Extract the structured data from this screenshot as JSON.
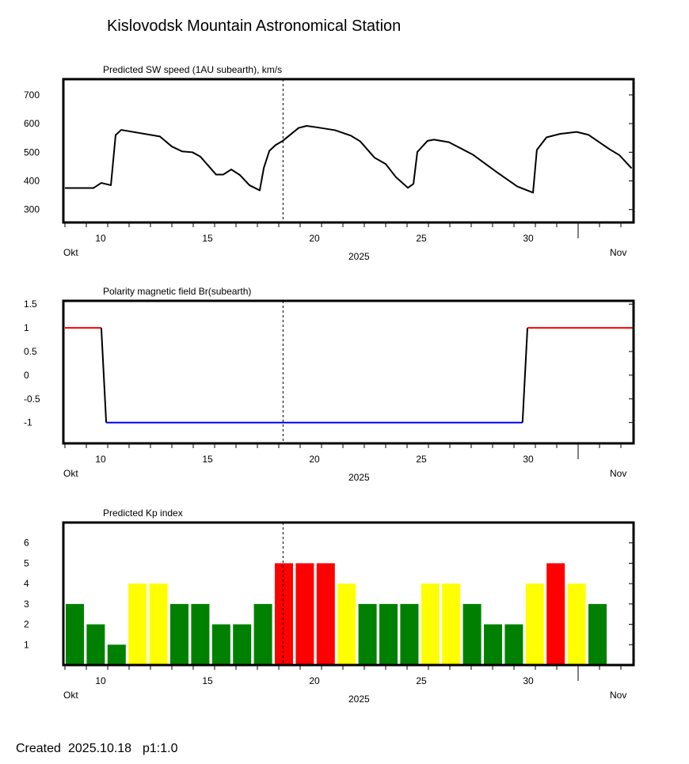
{
  "title": "Kislovodsk Mountain Astronomical Station",
  "footer": {
    "created_label": "Created",
    "date": "2025.10.18",
    "page": "p1:1.0"
  },
  "colors": {
    "line": "#000000",
    "positive": "#ff0000",
    "negative": "#0000ff",
    "kp_green": "#008000",
    "kp_yellow": "#ffff00",
    "kp_red": "#ff0000"
  },
  "chart_data": [
    {
      "type": "line",
      "title": "Predicted SW speed (1AU subearth), km/s",
      "xlabel": "2025",
      "x_month_left": "Okt",
      "x_month_right": "Nov",
      "xlim": [
        8,
        34.6
      ],
      "ylim": [
        255,
        755
      ],
      "xticks": [
        10,
        15,
        20,
        25,
        30
      ],
      "yticks": [
        300,
        400,
        500,
        600,
        700
      ],
      "current_day_marker": 18.2,
      "x": [
        8.0,
        9.33,
        9.7,
        10.15,
        10.37,
        10.63,
        12.44,
        13.0,
        13.48,
        13.96,
        14.33,
        15.07,
        15.4,
        15.78,
        16.19,
        16.63,
        17.11,
        17.3,
        17.56,
        17.85,
        18.19,
        18.93,
        19.3,
        19.78,
        20.63,
        21.37,
        21.81,
        22.48,
        23.0,
        23.48,
        24.04,
        24.3,
        24.48,
        24.96,
        25.26,
        25.96,
        27.07,
        28.19,
        29.15,
        29.89,
        30.07,
        30.52,
        31.15,
        31.93,
        32.48,
        33.48,
        33.93,
        34.5
      ],
      "y": [
        375,
        375,
        393,
        385,
        560,
        578,
        555,
        520,
        503,
        500,
        485,
        422,
        422,
        440,
        420,
        385,
        367,
        445,
        505,
        525,
        540,
        585,
        592,
        587,
        577,
        558,
        538,
        481,
        459,
        413,
        376,
        390,
        501,
        540,
        544,
        535,
        492,
        431,
        381,
        359,
        508,
        552,
        564,
        571,
        561,
        510,
        490,
        444
      ]
    },
    {
      "type": "line",
      "title": "Polarity magnetic field  Br(subearth)",
      "xlabel": "2025",
      "x_month_left": "Okt",
      "x_month_right": "Nov",
      "xlim": [
        8,
        34.6
      ],
      "ylim": [
        -1.44,
        1.57
      ],
      "xticks": [
        10,
        15,
        20,
        25,
        30
      ],
      "yticks": [
        1.5,
        1,
        0.5,
        0,
        -0.5,
        -1
      ],
      "ytick_labels": [
        "1.5",
        "1",
        "0.5",
        "0",
        "-0.5",
        "-1"
      ],
      "current_day_marker": 18.2,
      "x": [
        8.0,
        9.7,
        9.93,
        29.4,
        29.63,
        34.6
      ],
      "y": [
        1,
        1,
        -1,
        -1,
        1,
        1
      ]
    },
    {
      "type": "bar",
      "title": "Predicted Kp index",
      "xlabel": "2025",
      "x_month_left": "Okt",
      "x_month_right": "Nov",
      "xlim": [
        8,
        34.6
      ],
      "ylim": [
        0,
        7
      ],
      "xticks": [
        10,
        15,
        20,
        25,
        30
      ],
      "yticks": [
        1,
        2,
        3,
        4,
        5,
        6
      ],
      "current_day_marker": 18.2,
      "values": [
        3,
        2,
        1,
        4,
        4,
        3,
        3,
        2,
        2,
        3,
        5,
        5,
        5,
        4,
        3,
        3,
        3,
        4,
        4,
        3,
        2,
        2,
        4,
        5,
        4,
        3
      ]
    }
  ]
}
